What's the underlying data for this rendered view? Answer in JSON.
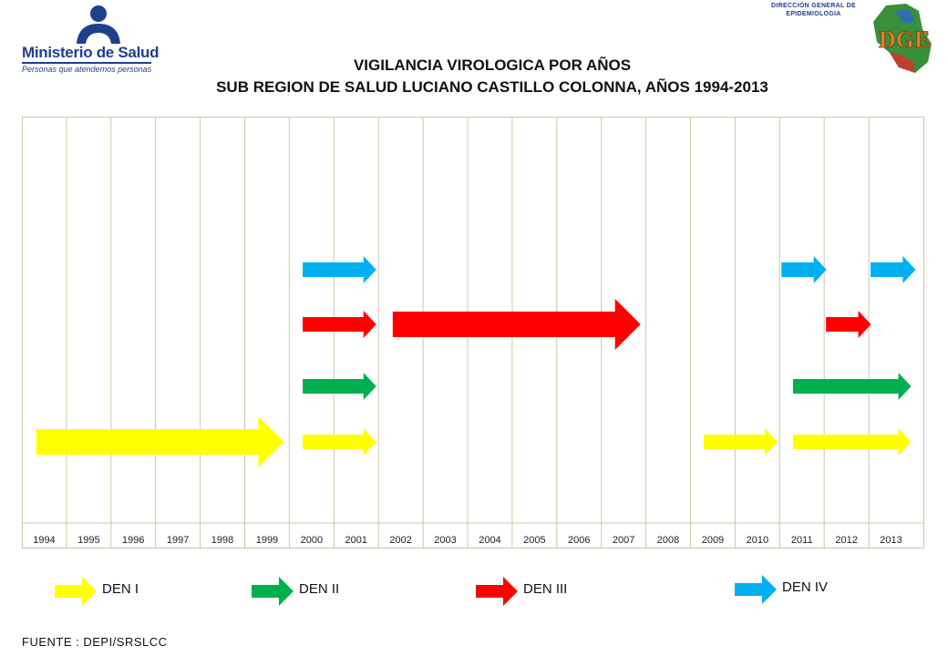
{
  "header": {
    "ministry_name": "Ministerio de Salud",
    "ministry_tagline": "Personas que atendemos personas",
    "dge_text_line1": "DIRECCIÓN GENERAL DE",
    "dge_text_line2": "EPIDEMIOLOGIA",
    "dge_logo_letters": "DGE"
  },
  "chart_data": {
    "type": "timeline",
    "title": "VIGILANCIA VIROLOGICA POR AÑOS",
    "subtitle": "SUB REGION DE SALUD LUCIANO CASTILLO COLONNA, AÑOS 1994-2013",
    "categories": [
      "1994",
      "1995",
      "1996",
      "1997",
      "1998",
      "1999",
      "2000",
      "2001",
      "2002",
      "2003",
      "2004",
      "2005",
      "2006",
      "2007",
      "2008",
      "2009",
      "2010",
      "2011",
      "2012",
      "2013"
    ],
    "grid": true,
    "legend_placement": "bottom",
    "series": [
      {
        "name": "DEN I",
        "color": "#ffff00",
        "arrows": [
          {
            "start": 1994,
            "end": 1999,
            "thick": true
          },
          {
            "start": 2000,
            "end": 2001
          },
          {
            "start": 2009,
            "end": 2010
          },
          {
            "start": 2011,
            "end": 2013
          }
        ]
      },
      {
        "name": "DEN II",
        "color": "#00b050",
        "arrows": [
          {
            "start": 2000,
            "end": 2001
          },
          {
            "start": 2011,
            "end": 2013
          }
        ]
      },
      {
        "name": "DEN III",
        "color": "#ff0000",
        "arrows": [
          {
            "start": 2000,
            "end": 2001
          },
          {
            "start": 2002,
            "end": 2007,
            "thick": true
          },
          {
            "start": 2012,
            "end": 2012
          }
        ]
      },
      {
        "name": "DEN IV",
        "color": "#00b0f0",
        "arrows": [
          {
            "start": 2000,
            "end": 2001
          },
          {
            "start": 2011,
            "end": 2011
          },
          {
            "start": 2013,
            "end": 2013
          }
        ]
      }
    ]
  },
  "footer": {
    "source": "FUENTE : DEPI/SRSLCC"
  }
}
